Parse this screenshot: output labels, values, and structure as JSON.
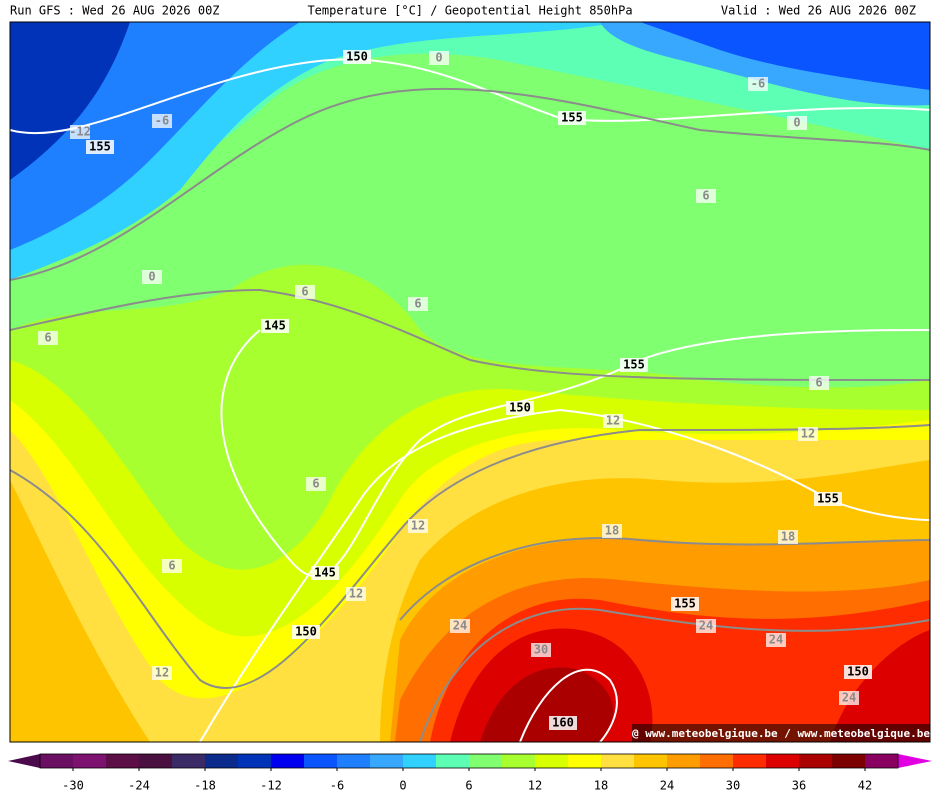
{
  "header": {
    "left": "Run GFS : Wed 26 AUG 2026 00Z",
    "center": "Temperature [°C] / Geopotential Height 850hPa",
    "right": "Valid : Wed 26 AUG 2026 00Z"
  },
  "map": {
    "height_labels": [
      "150",
      "155",
      "155",
      "145",
      "155",
      "150",
      "155",
      "145",
      "150",
      "155",
      "150",
      "160"
    ],
    "temperature_labels": [
      "0",
      "-6",
      "-12",
      "-6",
      "0",
      "0",
      "6",
      "6",
      "6",
      "6",
      "6",
      "6",
      "6",
      "12",
      "12",
      "12",
      "12",
      "12",
      "18",
      "18",
      "24",
      "24",
      "24",
      "24",
      "30"
    ],
    "watermark": "@ www.meteobelgique.be / www.meteobelgique.be"
  },
  "colorbar": {
    "lim": [
      -33,
      45
    ],
    "ticks": [
      -30,
      -24,
      -18,
      -12,
      -6,
      0,
      6,
      12,
      18,
      24,
      30,
      36,
      42
    ],
    "colors": [
      "#6a0f62",
      "#7d1270",
      "#5c0e46",
      "#4a1040",
      "#3a2a66",
      "#0a2a8c",
      "#0033b8",
      "#0000f0",
      "#0a55ff",
      "#1e80ff",
      "#38a8ff",
      "#30d0ff",
      "#5cffb4",
      "#80ff70",
      "#a8ff30",
      "#d8ff00",
      "#ffff00",
      "#ffe040",
      "#ffc400",
      "#ff9c00",
      "#ff6e00",
      "#ff2c00",
      "#dc0000",
      "#aa0000",
      "#7c0000",
      "#8a0060"
    ],
    "low_color": "#4b0a4b",
    "high_color": "#e000e0"
  }
}
